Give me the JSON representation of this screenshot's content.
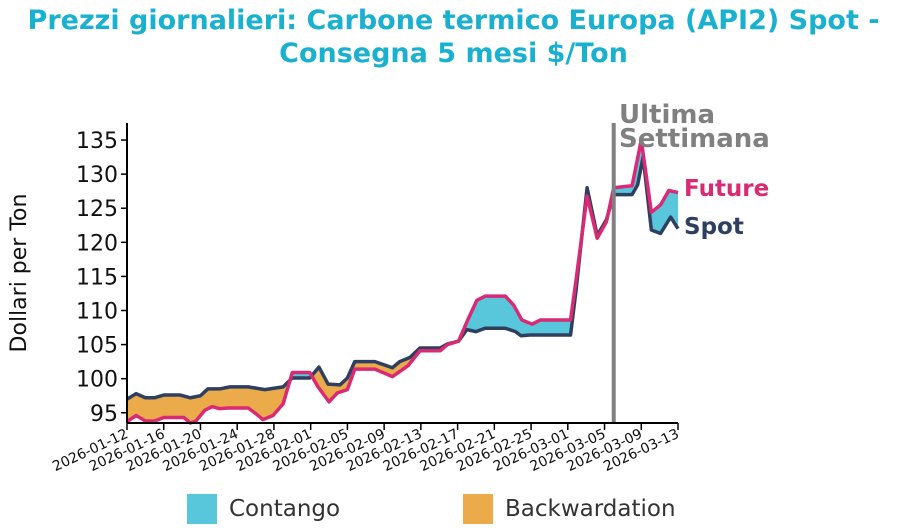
{
  "chart_data": {
    "type": "line",
    "title_line1": "Prezzi giornalieri: Carbone termico Europa (API2) Spot -",
    "title_line2": "Consegna 5 mesi $/Ton",
    "ylabel": "Dollari per Ton",
    "xlabel": "",
    "x_origin": "2026-01-12",
    "x_unit": "days since x_origin",
    "xlim": [
      0,
      60
    ],
    "ylim": [
      93.5,
      137.5
    ],
    "yticks": [
      95,
      100,
      105,
      110,
      115,
      120,
      125,
      130,
      135
    ],
    "xticks": [
      "2026-01-12",
      "2026-01-16",
      "2026-01-20",
      "2026-01-24",
      "2026-01-28",
      "2026-02-01",
      "2026-02-05",
      "2026-02-09",
      "2026-02-13",
      "2026-02-17",
      "2026-02-21",
      "2026-02-25",
      "2026-03-01",
      "2026-03-05",
      "2026-03-09",
      "2026-03-13"
    ],
    "annotation": {
      "line1": "Ultima",
      "line2": "Settimana",
      "day": 53
    },
    "series": [
      {
        "name": "Spot",
        "color": "#2e3f5f",
        "points": [
          [
            0,
            97.0
          ],
          [
            1,
            97.8
          ],
          [
            2,
            97.2
          ],
          [
            3,
            97.2
          ],
          [
            4,
            97.6
          ],
          [
            5.8,
            97.6
          ],
          [
            6.9,
            97.2
          ],
          [
            8,
            97.5
          ],
          [
            8.8,
            98.5
          ],
          [
            10.1,
            98.5
          ],
          [
            11.2,
            98.8
          ],
          [
            13.2,
            98.8
          ],
          [
            15,
            98.4
          ],
          [
            17,
            98.8
          ],
          [
            18,
            100.1
          ],
          [
            19.9,
            100.1
          ],
          [
            20.9,
            101.7
          ],
          [
            21.9,
            99.2
          ],
          [
            23.2,
            99.1
          ],
          [
            24,
            100.1
          ],
          [
            24.8,
            102.5
          ],
          [
            27,
            102.5
          ],
          [
            28.9,
            101.6
          ],
          [
            29.7,
            102.5
          ],
          [
            30.8,
            103.1
          ],
          [
            31.9,
            104.5
          ],
          [
            34.1,
            104.5
          ],
          [
            34.9,
            105.1
          ],
          [
            36.1,
            105.5
          ],
          [
            37,
            107.2
          ],
          [
            38,
            106.9
          ],
          [
            39,
            107.4
          ],
          [
            41.2,
            107.4
          ],
          [
            42.3,
            106.9
          ],
          [
            42.9,
            106.3
          ],
          [
            43.9,
            106.4
          ],
          [
            48.3,
            106.4
          ],
          [
            48.9,
            113.0
          ],
          [
            50.1,
            128.0
          ],
          [
            51.2,
            121.0
          ],
          [
            52.2,
            123.3
          ],
          [
            53,
            127.0
          ],
          [
            55,
            127.0
          ],
          [
            55.6,
            128.4
          ],
          [
            56.2,
            132.5
          ],
          [
            57.1,
            121.8
          ],
          [
            58.1,
            121.3
          ],
          [
            59.2,
            123.7
          ],
          [
            60,
            122.0
          ]
        ]
      },
      {
        "name": "Future",
        "color": "#d92a73",
        "points": [
          [
            0,
            93.7
          ],
          [
            1,
            94.6
          ],
          [
            2,
            93.8
          ],
          [
            3,
            93.8
          ],
          [
            4,
            94.3
          ],
          [
            6.2,
            94.3
          ],
          [
            6.9,
            93.5
          ],
          [
            7.5,
            93.8
          ],
          [
            8.5,
            95.4
          ],
          [
            9.3,
            95.9
          ],
          [
            10.1,
            95.6
          ],
          [
            11,
            95.7
          ],
          [
            13.2,
            95.7
          ],
          [
            14,
            94.9
          ],
          [
            14.8,
            94.0
          ],
          [
            15.9,
            94.6
          ],
          [
            17,
            96.3
          ],
          [
            18,
            100.9
          ],
          [
            19.9,
            100.9
          ],
          [
            20.8,
            98.8
          ],
          [
            22,
            96.6
          ],
          [
            22.9,
            97.9
          ],
          [
            24,
            98.4
          ],
          [
            24.8,
            101.4
          ],
          [
            27,
            101.4
          ],
          [
            28.9,
            100.3
          ],
          [
            30.6,
            101.9
          ],
          [
            31.9,
            104.1
          ],
          [
            34.1,
            104.1
          ],
          [
            34.9,
            105.0
          ],
          [
            36.1,
            105.5
          ],
          [
            37.1,
            108.6
          ],
          [
            38.1,
            111.5
          ],
          [
            39,
            112.1
          ],
          [
            41.2,
            112.1
          ],
          [
            42.1,
            110.8
          ],
          [
            43,
            108.6
          ],
          [
            44.1,
            108.0
          ],
          [
            45,
            108.6
          ],
          [
            48.3,
            108.6
          ],
          [
            48.9,
            114.5
          ],
          [
            50.1,
            126.8
          ],
          [
            51.2,
            120.6
          ],
          [
            52.2,
            123.0
          ],
          [
            53,
            128.0
          ],
          [
            55,
            128.3
          ],
          [
            56,
            135.0
          ],
          [
            57.1,
            124.4
          ],
          [
            58.1,
            125.5
          ],
          [
            59,
            127.6
          ],
          [
            60,
            127.3
          ]
        ]
      }
    ],
    "legend": [
      {
        "label": "Contango",
        "color": "#58c7dc"
      },
      {
        "label": "Backwardation",
        "color": "#ebab4a"
      }
    ]
  }
}
